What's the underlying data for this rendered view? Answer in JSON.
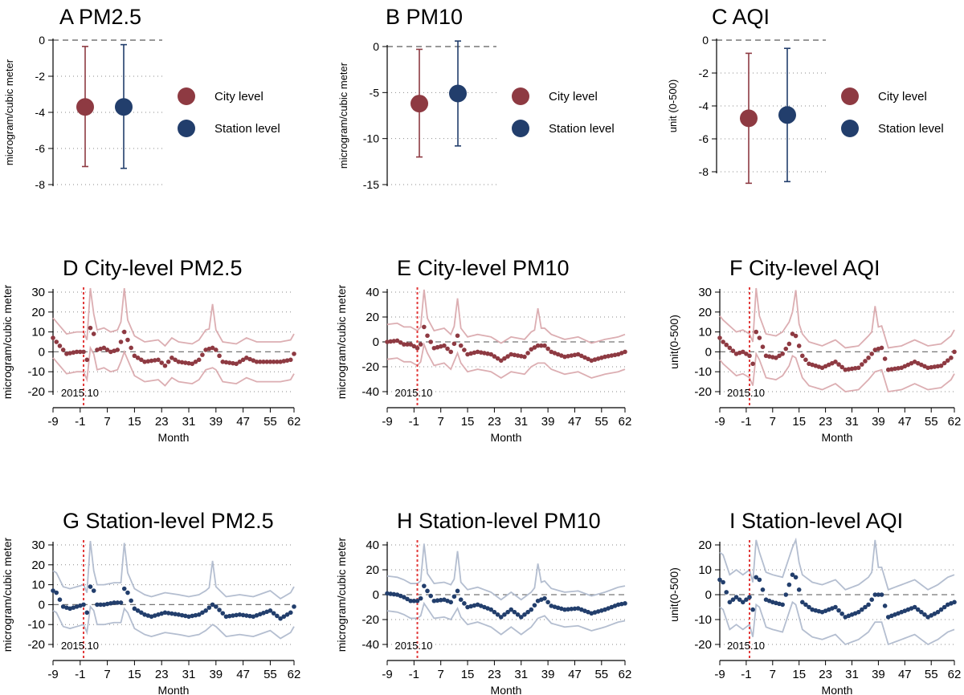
{
  "colors": {
    "city": "#8e3a42",
    "station": "#223e6c",
    "city_band": "#dcaeb2",
    "station_band": "#b4bed0",
    "marker": "#e23a3a",
    "grid": "#8a8a8a",
    "axis": "#000000"
  },
  "chart_data": [
    {
      "id": "A",
      "type": "scatter",
      "subtype": "point-range",
      "title": "A PM2.5",
      "ylabel": "microgram/cubic meter",
      "xlabel": "",
      "ylim": [
        -8,
        0
      ],
      "yticks": [
        0,
        -2,
        -4,
        -6,
        -8
      ],
      "legend_position": "right",
      "series": [
        {
          "name": "City level",
          "estimate": -3.7,
          "lower": -7.0,
          "upper": -0.35
        },
        {
          "name": "Station level",
          "estimate": -3.7,
          "lower": -7.1,
          "upper": -0.25
        }
      ]
    },
    {
      "id": "B",
      "type": "scatter",
      "subtype": "point-range",
      "title": "B PM10",
      "ylabel": "microgram/cubic meter",
      "xlabel": "",
      "ylim": [
        -15,
        0
      ],
      "yticks": [
        0,
        -5,
        -10,
        -15
      ],
      "legend_position": "right",
      "series": [
        {
          "name": "City level",
          "estimate": -6.2,
          "lower": -12.0,
          "upper": -0.3
        },
        {
          "name": "Station level",
          "estimate": -5.1,
          "lower": -10.8,
          "upper": 0.6
        }
      ]
    },
    {
      "id": "C",
      "type": "scatter",
      "subtype": "point-range",
      "title": "C AQI",
      "ylabel": "unit (0-500)",
      "xlabel": "",
      "ylim": [
        -8,
        0
      ],
      "yticks": [
        0,
        -2,
        -4,
        -6,
        -8
      ],
      "legend_position": "right",
      "series": [
        {
          "name": "City level",
          "estimate": -4.75,
          "lower": -8.7,
          "upper": -0.8
        },
        {
          "name": "Station level",
          "estimate": -4.55,
          "lower": -8.6,
          "upper": -0.5
        }
      ]
    },
    {
      "id": "D",
      "type": "line",
      "level": "city",
      "title": "D City-level PM2.5",
      "ylabel": "microgram/cubic meter",
      "xlabel": "Month",
      "ylim": [
        -20,
        30
      ],
      "yticks": [
        30,
        20,
        10,
        0,
        -10,
        -20
      ],
      "xlim": [
        -9,
        62
      ],
      "xticks": [
        -9,
        -1,
        7,
        15,
        23,
        31,
        39,
        47,
        55,
        62
      ],
      "x_start": -9,
      "event_month": 0,
      "event_label": "2015.10",
      "anchors": [
        [
          -9,
          7
        ],
        [
          -8,
          5
        ],
        [
          -5,
          -1
        ],
        [
          -2,
          0
        ],
        [
          0,
          0
        ],
        [
          1,
          -4
        ],
        [
          2,
          12
        ],
        [
          3,
          9
        ],
        [
          4,
          1
        ],
        [
          6,
          2
        ],
        [
          8,
          0
        ],
        [
          10,
          1
        ],
        [
          11,
          5
        ],
        [
          12,
          10
        ],
        [
          13,
          6
        ],
        [
          15,
          -2
        ],
        [
          18,
          -5
        ],
        [
          22,
          -4
        ],
        [
          24,
          -7
        ],
        [
          26,
          -3
        ],
        [
          28,
          -5
        ],
        [
          32,
          -6
        ],
        [
          34,
          -4
        ],
        [
          36,
          1
        ],
        [
          38,
          2
        ],
        [
          39,
          1
        ],
        [
          41,
          -5
        ],
        [
          45,
          -6
        ],
        [
          48,
          -3
        ],
        [
          51,
          -5
        ],
        [
          55,
          -5
        ],
        [
          58,
          -5
        ],
        [
          61,
          -4
        ],
        [
          62,
          -1
        ]
      ],
      "ci_half_width": 10,
      "spikes": {
        "2": 15,
        "12": 13,
        "38": 12
      }
    },
    {
      "id": "E",
      "type": "line",
      "level": "city",
      "title": "E City-level PM10",
      "ylabel": "microgram/cubic meter",
      "xlabel": "Month",
      "ylim": [
        -40,
        40
      ],
      "yticks": [
        40,
        20,
        0,
        -20,
        -40
      ],
      "xlim": [
        -9,
        62
      ],
      "xticks": [
        -9,
        -1,
        7,
        15,
        23,
        31,
        39,
        47,
        55,
        62
      ],
      "x_start": -9,
      "event_month": 0,
      "event_label": "2015.10",
      "anchors": [
        [
          -9,
          0
        ],
        [
          -6,
          1
        ],
        [
          -4,
          -2
        ],
        [
          -2,
          -2
        ],
        [
          0,
          -5
        ],
        [
          1,
          -2
        ],
        [
          2,
          12
        ],
        [
          3,
          5
        ],
        [
          5,
          -5
        ],
        [
          8,
          -3
        ],
        [
          10,
          -8
        ],
        [
          12,
          5
        ],
        [
          13,
          -3
        ],
        [
          15,
          -10
        ],
        [
          18,
          -8
        ],
        [
          22,
          -10
        ],
        [
          25,
          -15
        ],
        [
          28,
          -10
        ],
        [
          32,
          -12
        ],
        [
          34,
          -6
        ],
        [
          36,
          -3
        ],
        [
          38,
          -3
        ],
        [
          40,
          -8
        ],
        [
          44,
          -12
        ],
        [
          48,
          -10
        ],
        [
          52,
          -15
        ],
        [
          56,
          -12
        ],
        [
          60,
          -10
        ],
        [
          62,
          -8
        ]
      ],
      "ci_half_width": 14,
      "spikes": {
        "2": 18,
        "12": 16,
        "36": 16
      }
    },
    {
      "id": "F",
      "type": "line",
      "level": "city",
      "title": "F City-level AQI",
      "ylabel": "unit(0-500)",
      "xlabel": "Month",
      "ylim": [
        -20,
        30
      ],
      "yticks": [
        30,
        20,
        10,
        0,
        -10,
        -20
      ],
      "xlim": [
        -9,
        62
      ],
      "xticks": [
        -9,
        -1,
        7,
        15,
        23,
        31,
        39,
        47,
        55,
        62
      ],
      "x_start": -9,
      "event_month": 0,
      "event_label": "2015.10",
      "anchors": [
        [
          -9,
          7
        ],
        [
          -8,
          5
        ],
        [
          -6,
          2
        ],
        [
          -4,
          -1
        ],
        [
          -2,
          0
        ],
        [
          0,
          -2
        ],
        [
          1,
          -6
        ],
        [
          2,
          10
        ],
        [
          3,
          7
        ],
        [
          5,
          -2
        ],
        [
          8,
          -3
        ],
        [
          10,
          -1
        ],
        [
          12,
          4
        ],
        [
          13,
          9
        ],
        [
          14,
          8
        ],
        [
          16,
          -2
        ],
        [
          18,
          -6
        ],
        [
          22,
          -8
        ],
        [
          26,
          -5
        ],
        [
          29,
          -9
        ],
        [
          33,
          -8
        ],
        [
          36,
          -3
        ],
        [
          38,
          1
        ],
        [
          40,
          2
        ],
        [
          42,
          -9
        ],
        [
          46,
          -8
        ],
        [
          50,
          -5
        ],
        [
          54,
          -8
        ],
        [
          58,
          -7
        ],
        [
          61,
          -3
        ],
        [
          62,
          0
        ]
      ],
      "ci_half_width": 11,
      "spikes": {
        "2": 15,
        "14": 12,
        "38": 11
      }
    },
    {
      "id": "G",
      "type": "line",
      "level": "station",
      "title": "G Station-level PM2.5",
      "ylabel": "microgram/cubic meter",
      "xlabel": "Month",
      "ylim": [
        -20,
        30
      ],
      "yticks": [
        30,
        20,
        10,
        0,
        -10,
        -20
      ],
      "xlim": [
        -9,
        62
      ],
      "xticks": [
        -9,
        -1,
        7,
        15,
        23,
        31,
        39,
        47,
        55,
        62
      ],
      "x_start": -9,
      "event_month": 0,
      "event_label": "2015.10",
      "anchors": [
        [
          -9,
          7
        ],
        [
          -8,
          6
        ],
        [
          -6,
          -1
        ],
        [
          -4,
          -2
        ],
        [
          -2,
          -1
        ],
        [
          0,
          0
        ],
        [
          1,
          -4
        ],
        [
          2,
          9
        ],
        [
          3,
          7
        ],
        [
          4,
          0
        ],
        [
          6,
          0
        ],
        [
          9,
          1
        ],
        [
          11,
          1
        ],
        [
          12,
          8
        ],
        [
          13,
          6
        ],
        [
          15,
          -2
        ],
        [
          18,
          -5
        ],
        [
          20,
          -6
        ],
        [
          24,
          -4
        ],
        [
          28,
          -5
        ],
        [
          31,
          -6
        ],
        [
          34,
          -5
        ],
        [
          36,
          -3
        ],
        [
          38,
          0
        ],
        [
          39,
          -1
        ],
        [
          42,
          -6
        ],
        [
          46,
          -5
        ],
        [
          50,
          -6
        ],
        [
          55,
          -3
        ],
        [
          58,
          -7
        ],
        [
          61,
          -4
        ],
        [
          62,
          -1
        ]
      ],
      "ci_half_width": 10,
      "spikes": {
        "2": 15,
        "12": 13,
        "38": 12
      }
    },
    {
      "id": "H",
      "type": "line",
      "level": "station",
      "title": "H Station-level PM10",
      "ylabel": "microgram/cubic meter",
      "xlabel": "Month",
      "ylim": [
        -40,
        40
      ],
      "yticks": [
        40,
        20,
        0,
        -20,
        -40
      ],
      "xlim": [
        -9,
        62
      ],
      "xticks": [
        -9,
        -1,
        7,
        15,
        23,
        31,
        39,
        47,
        55,
        62
      ],
      "x_start": -9,
      "event_month": 0,
      "event_label": "2015.10",
      "anchors": [
        [
          -9,
          1
        ],
        [
          -6,
          0
        ],
        [
          -4,
          -2
        ],
        [
          -2,
          -5
        ],
        [
          0,
          -5
        ],
        [
          1,
          -3
        ],
        [
          2,
          7
        ],
        [
          3,
          3
        ],
        [
          5,
          -5
        ],
        [
          8,
          -4
        ],
        [
          10,
          -6
        ],
        [
          12,
          3
        ],
        [
          13,
          -4
        ],
        [
          15,
          -10
        ],
        [
          18,
          -8
        ],
        [
          22,
          -12
        ],
        [
          25,
          -18
        ],
        [
          28,
          -12
        ],
        [
          31,
          -18
        ],
        [
          34,
          -12
        ],
        [
          36,
          -5
        ],
        [
          38,
          -3
        ],
        [
          40,
          -9
        ],
        [
          44,
          -12
        ],
        [
          48,
          -11
        ],
        [
          52,
          -15
        ],
        [
          56,
          -12
        ],
        [
          60,
          -8
        ],
        [
          62,
          -7
        ]
      ],
      "ci_half_width": 14,
      "spikes": {
        "2": 20,
        "12": 18,
        "36": 16
      }
    },
    {
      "id": "I",
      "type": "line",
      "level": "station",
      "title": "I Station-level AQI",
      "ylabel": "unit(0-500)",
      "xlabel": "Month",
      "ylim": [
        -20,
        20
      ],
      "yticks": [
        20,
        10,
        0,
        -10,
        -20
      ],
      "xlim": [
        -9,
        62
      ],
      "xticks": [
        -9,
        -1,
        7,
        15,
        23,
        31,
        39,
        47,
        55,
        62
      ],
      "x_start": -9,
      "event_month": 0,
      "event_label": "2015.10",
      "anchors": [
        [
          -9,
          6
        ],
        [
          -8,
          5
        ],
        [
          -6,
          -3
        ],
        [
          -4,
          -1
        ],
        [
          -2,
          -3
        ],
        [
          0,
          -1
        ],
        [
          1,
          -6
        ],
        [
          2,
          7
        ],
        [
          3,
          6
        ],
        [
          5,
          -2
        ],
        [
          7,
          -3
        ],
        [
          10,
          -4
        ],
        [
          12,
          4
        ],
        [
          13,
          8
        ],
        [
          14,
          7
        ],
        [
          16,
          -3
        ],
        [
          19,
          -6
        ],
        [
          22,
          -7
        ],
        [
          26,
          -5
        ],
        [
          29,
          -9
        ],
        [
          33,
          -7
        ],
        [
          36,
          -4
        ],
        [
          38,
          0
        ],
        [
          40,
          0
        ],
        [
          42,
          -9
        ],
        [
          46,
          -7
        ],
        [
          50,
          -5
        ],
        [
          54,
          -9
        ],
        [
          57,
          -7
        ],
        [
          60,
          -4
        ],
        [
          62,
          -3
        ]
      ],
      "ci_half_width": 11,
      "spikes": {
        "2": 14,
        "14": 12,
        "38": 11
      }
    }
  ]
}
